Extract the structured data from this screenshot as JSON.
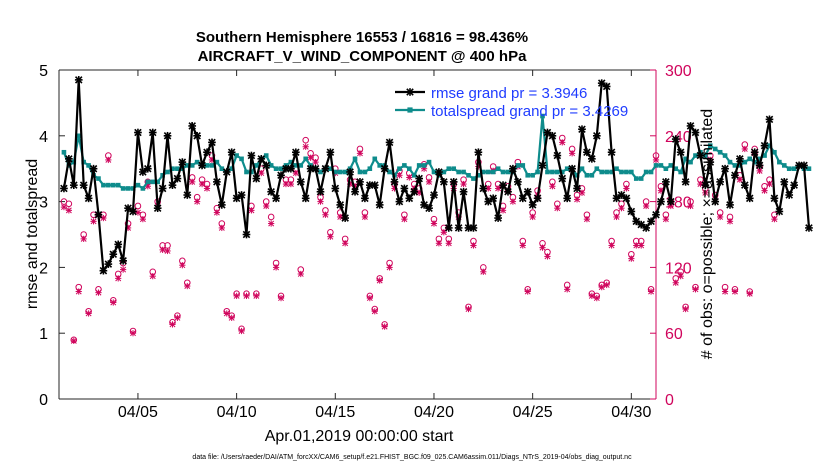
{
  "colors": {
    "rmse": "#000000",
    "spread": "#0e8c8c",
    "obs": "#d0045c",
    "legend_text": "#1f3cff",
    "axis": "#262626"
  },
  "chart_data": {
    "type": "line",
    "title": "Southern Hemisphere 16553 / 16816 = 98.436%",
    "subtitle": "AIRCRAFT_V_WIND_COMPONENT @ 400 hPa",
    "xlabel": "Apr.01,2019 00:00:00 start",
    "ylabel_left": "rmse and totalspread",
    "ylabel_right": "# of obs: o=possible; ×=assimilated",
    "xlim": [
      1,
      31.25
    ],
    "ylim_left": [
      0,
      5
    ],
    "ylim_right": [
      0,
      300
    ],
    "x_ticks": [
      5,
      10,
      15,
      20,
      25,
      30
    ],
    "x_tick_labels": [
      "04/05",
      "04/10",
      "04/15",
      "04/20",
      "04/25",
      "04/30"
    ],
    "y_ticks_left": [
      0,
      1,
      2,
      3,
      4,
      5
    ],
    "y_tick_labels_left": [
      "0",
      "1",
      "2",
      "3",
      "4",
      "5"
    ],
    "y_ticks_right": [
      0,
      60,
      120,
      180,
      240,
      300
    ],
    "y_tick_labels_right": [
      "0",
      "60",
      "120",
      "180",
      "240",
      "300"
    ],
    "x_start": 1.25,
    "x_step": 0.25,
    "series": [
      {
        "name": "rmse grand pr = 3.3946",
        "axis": "left",
        "values": [
          3.2,
          3.65,
          3.25,
          4.85,
          3.25,
          3.05,
          3.5,
          2.8,
          1.95,
          2.05,
          2.2,
          2.35,
          2.1,
          2.9,
          2.85,
          4.05,
          3.45,
          3.5,
          4.05,
          2.9,
          3.2,
          4.0,
          3.25,
          3.35,
          3.6,
          3.1,
          4.15,
          4.0,
          3.55,
          3.75,
          3.9,
          3.3,
          2.95,
          3.45,
          3.75,
          3.05,
          3.1,
          2.5,
          3.7,
          3.35,
          3.65,
          3.55,
          3.15,
          3.05,
          3.4,
          3.5,
          3.5,
          3.75,
          3.3,
          3.05,
          3.5,
          3.5,
          3.15,
          3.5,
          3.75,
          3.2,
          2.95,
          2.75,
          3.45,
          3.15,
          3.3,
          3.05,
          3.25,
          3.25,
          2.95,
          3.5,
          3.9,
          3.3,
          3.0,
          3.2,
          3.05,
          3.15,
          3.35,
          2.95,
          2.9,
          3.1,
          3.45,
          3.3,
          2.6,
          3.3,
          2.6,
          3.15,
          2.6,
          2.6,
          3.75,
          3.2,
          3.0,
          3.05,
          2.75,
          3.25,
          3.15,
          3.5,
          3.3,
          3.05,
          3.15,
          2.95,
          3.05,
          3.55,
          4.05,
          4.0,
          3.7,
          3.35,
          3.05,
          3.5,
          3.2,
          4.1,
          3.75,
          3.65,
          4.0,
          4.8,
          4.75,
          3.75,
          3.05,
          3.1,
          3.05,
          2.85,
          2.7,
          2.65,
          2.6,
          2.7,
          2.8,
          3.0,
          3.3,
          3.0,
          3.95,
          3.75,
          3.3,
          4.15,
          4.05,
          3.7,
          3.25,
          3.6,
          3.0,
          3.3,
          3.5,
          2.95,
          3.4,
          3.65,
          3.25,
          3.05,
          3.75,
          3.55,
          3.85,
          4.25,
          3.05,
          2.85,
          3.3,
          3.1,
          3.25,
          3.55,
          3.55,
          2.6
        ]
      },
      {
        "name": "totalspread grand pr = 3.4269",
        "axis": "left",
        "values": [
          3.75,
          3.55,
          3.6,
          4.0,
          3.6,
          3.55,
          3.4,
          3.35,
          3.25,
          3.25,
          3.25,
          3.25,
          3.2,
          3.2,
          3.2,
          3.25,
          3.2,
          3.3,
          3.3,
          3.3,
          3.4,
          3.45,
          3.5,
          3.5,
          3.5,
          3.55,
          3.55,
          3.6,
          3.55,
          3.55,
          3.55,
          3.6,
          3.5,
          3.45,
          3.5,
          3.7,
          3.65,
          3.45,
          3.45,
          3.55,
          3.65,
          3.7,
          3.55,
          3.5,
          3.5,
          3.55,
          3.6,
          3.55,
          3.55,
          3.65,
          3.55,
          3.5,
          3.45,
          3.5,
          3.5,
          3.45,
          3.45,
          3.45,
          3.5,
          3.65,
          3.45,
          3.45,
          3.5,
          3.65,
          3.55,
          3.55,
          3.45,
          3.4,
          3.5,
          3.55,
          3.5,
          3.4,
          3.55,
          3.55,
          3.6,
          3.45,
          3.4,
          3.45,
          3.5,
          3.5,
          3.45,
          3.45,
          3.4,
          3.35,
          3.4,
          3.45,
          3.45,
          3.45,
          3.5,
          3.45,
          3.45,
          3.45,
          3.55,
          3.55,
          3.4,
          3.4,
          3.45,
          4.3,
          3.45,
          3.45,
          3.45,
          3.45,
          3.5,
          3.5,
          3.4,
          3.5,
          3.4,
          3.4,
          3.5,
          3.45,
          3.45,
          3.45,
          3.5,
          3.45,
          3.45,
          3.45,
          3.35,
          3.35,
          3.45,
          3.45,
          3.55,
          3.55,
          3.5,
          3.55,
          3.5,
          3.45,
          3.65,
          3.6,
          3.7,
          3.75,
          3.7,
          3.85,
          3.8,
          3.75,
          3.7,
          3.6,
          3.55,
          3.55,
          3.6,
          3.65,
          3.6,
          3.65,
          3.7,
          3.85,
          3.75,
          3.6,
          3.55,
          3.5,
          3.5,
          3.55,
          3.5,
          3.5
        ]
      },
      {
        "name": "obs possible (o)",
        "axis": "right",
        "values": [
          180,
          178,
          54,
          102,
          150,
          80,
          168,
          100,
          168,
          222,
          90,
          114,
          124,
          160,
          62,
          176,
          168,
          198,
          116,
          180,
          140,
          140,
          70,
          76,
          126,
          106,
          202,
          184,
          200,
          196,
          222,
          174,
          160,
          80,
          76,
          96,
          64,
          96,
          176,
          96,
          210,
          180,
          166,
          124,
          94,
          200,
          200,
          210,
          118,
          236,
          224,
          220,
          184,
          172,
          152,
          210,
          170,
          146,
          200,
          198,
          228,
          170,
          94,
          82,
          110,
          68,
          124,
          196,
          208,
          168,
          206,
          196,
          192,
          214,
          202,
          164,
          146,
          156,
          146,
          196,
          170,
          200,
          84,
          144,
          216,
          120,
          196,
          212,
          196,
          176,
          194,
          184,
          216,
          144,
          100,
          170,
          190,
          142,
          134,
          198,
          178,
          238,
          104,
          228,
          186,
          192,
          168,
          96,
          94,
          104,
          106,
          144,
          170,
          178,
          196,
          132,
          144,
          144,
          180,
          100,
          222,
          194,
          168,
          180,
          110,
          116,
          84,
          180,
          102,
          200,
          192,
          222,
          186,
          170,
          102,
          166,
          100,
          204,
          232,
          98,
          228,
          212,
          194,
          200,
          168
        ]
      },
      {
        "name": "obs assimilated (×)",
        "axis": "right",
        "values": [
          175,
          172,
          53,
          98,
          146,
          78,
          162,
          97,
          165,
          218,
          88,
          110,
          118,
          156,
          60,
          170,
          164,
          194,
          112,
          176,
          136,
          135,
          68,
          74,
          122,
          103,
          198,
          180,
          196,
          192,
          218,
          170,
          156,
          78,
          74,
          94,
          62,
          94,
          172,
          94,
          206,
          176,
          160,
          120,
          92,
          196,
          196,
          206,
          114,
          230,
          220,
          216,
          180,
          168,
          148,
          206,
          166,
          142,
          196,
          194,
          224,
          166,
          92,
          80,
          108,
          66,
          120,
          192,
          204,
          164,
          202,
          192,
          188,
          210,
          198,
          160,
          142,
          152,
          142,
          192,
          166,
          196,
          82,
          140,
          212,
          116,
          192,
          208,
          192,
          172,
          190,
          180,
          212,
          140,
          98,
          166,
          186,
          138,
          130,
          194,
          174,
          234,
          100,
          224,
          182,
          188,
          164,
          94,
          92,
          102,
          104,
          140,
          166,
          174,
          192,
          128,
          140,
          140,
          176,
          98,
          218,
          190,
          164,
          176,
          106,
          112,
          82,
          176,
          100,
          196,
          188,
          218,
          182,
          166,
          98,
          162,
          98,
          200,
          228,
          96,
          224,
          208,
          190,
          196,
          164
        ]
      }
    ],
    "legend": {
      "position": "top-right",
      "entries": [
        "rmse grand pr = 3.3946",
        "totalspread grand pr = 3.4269"
      ]
    },
    "grid": false
  },
  "footnote": "data file: /Users/raeder/DAI/ATM_forcXX/CAM6_setup/f.e21.FHIST_BGC.f09_025.CAM6assim.011/Diags_NTrS_2019-04/obs_diag_output.nc"
}
